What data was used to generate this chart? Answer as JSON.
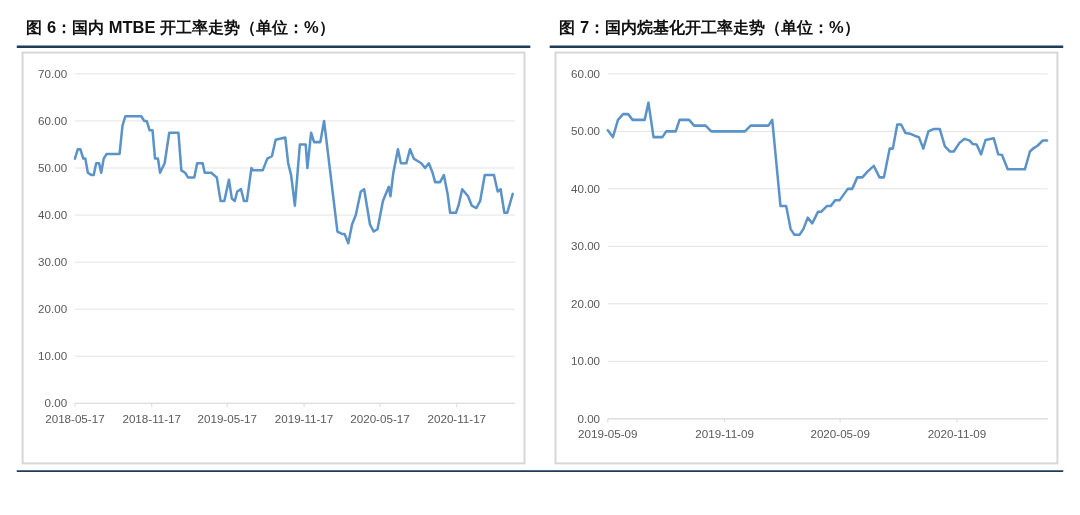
{
  "chart_data": [
    {
      "type": "line",
      "title": "图 6：国内 MTBE 开工率走势（单位：%）",
      "grid": "y",
      "marker": "none",
      "line_style": "solid",
      "xlim": [
        "2018-05-17",
        "2021-04-05"
      ],
      "xticks": [
        "2018-05-17",
        "2018-11-17",
        "2019-05-17",
        "2019-11-17",
        "2020-05-17",
        "2020-11-17"
      ],
      "ylim": [
        0,
        70
      ],
      "yticks": [
        {
          "value": 0,
          "label": "0.00"
        },
        {
          "value": 10,
          "label": "10.00"
        },
        {
          "value": 20,
          "label": "20.00"
        },
        {
          "value": 30,
          "label": "30.00"
        },
        {
          "value": 40,
          "label": "40.00"
        },
        {
          "value": 50,
          "label": "50.00"
        },
        {
          "value": 60,
          "label": "60.00"
        },
        {
          "value": 70,
          "label": "70.00"
        }
      ],
      "series": [
        {
          "color": "#5b93c9",
          "x": [
            "2018-05-17",
            "2018-05-24",
            "2018-05-30",
            "2018-06-06",
            "2018-06-11",
            "2018-06-17",
            "2018-06-26",
            "2018-07-01",
            "2018-07-07",
            "2018-07-14",
            "2018-07-19",
            "2018-07-25",
            "2018-08-01",
            "2018-08-08",
            "2018-09-01",
            "2018-09-08",
            "2018-09-15",
            "2018-10-23",
            "2018-10-30",
            "2018-11-05",
            "2018-11-12",
            "2018-11-19",
            "2018-11-25",
            "2018-12-02",
            "2018-12-07",
            "2018-12-18",
            "2018-12-29",
            "2019-01-20",
            "2019-01-27",
            "2019-02-05",
            "2019-02-12",
            "2019-02-27",
            "2019-03-06",
            "2019-03-19",
            "2019-03-24",
            "2019-04-09",
            "2019-04-15",
            "2019-04-22",
            "2019-05-01",
            "2019-05-10",
            "2019-05-21",
            "2019-05-28",
            "2019-06-04",
            "2019-06-10",
            "2019-06-19",
            "2019-06-26",
            "2019-07-03",
            "2019-07-14",
            "2019-07-18",
            "2019-08-10",
            "2019-08-21",
            "2019-09-01",
            "2019-09-10",
            "2019-10-03",
            "2019-10-10",
            "2019-10-17",
            "2019-10-26",
            "2019-11-07",
            "2019-11-21",
            "2019-11-25",
            "2019-12-04",
            "2019-12-11",
            "2019-12-26",
            "2020-01-04",
            "2020-02-05",
            "2020-02-16",
            "2020-02-22",
            "2020-03-02",
            "2020-03-11",
            "2020-03-20",
            "2020-04-01",
            "2020-04-09",
            "2020-04-23",
            "2020-05-02",
            "2020-05-11",
            "2020-05-24",
            "2020-06-07",
            "2020-06-11",
            "2020-06-18",
            "2020-06-29",
            "2020-07-06",
            "2020-07-19",
            "2020-07-28",
            "2020-08-06",
            "2020-08-15",
            "2020-08-24",
            "2020-09-02",
            "2020-09-11",
            "2020-09-20",
            "2020-09-26",
            "2020-10-08",
            "2020-10-17",
            "2020-10-26",
            "2020-11-01",
            "2020-11-15",
            "2020-11-21",
            "2020-11-30",
            "2020-12-14",
            "2020-12-23",
            "2021-01-03",
            "2021-01-12",
            "2021-01-23",
            "2021-02-01",
            "2021-02-14",
            "2021-02-23",
            "2021-03-02",
            "2021-03-11",
            "2021-03-18",
            "2021-03-31"
          ],
          "values": [
            52,
            54,
            54,
            52,
            52,
            49,
            48.5,
            48.5,
            51,
            51,
            49,
            52,
            53,
            53,
            53,
            59,
            61,
            61,
            60,
            60,
            58,
            58,
            52,
            52,
            49,
            51,
            57.5,
            57.5,
            49.5,
            49,
            48,
            48,
            51,
            51,
            49,
            49,
            48.5,
            48,
            43,
            43,
            47.5,
            43.5,
            43,
            45,
            45.5,
            43,
            43,
            50,
            49.5,
            49.5,
            52,
            52.5,
            56,
            56.5,
            51,
            48.5,
            42,
            55,
            55,
            50,
            57.5,
            55.5,
            55.5,
            60,
            36.5,
            36,
            36,
            34,
            38,
            40,
            45,
            45.5,
            38,
            36.5,
            37,
            43,
            46,
            44,
            49,
            54,
            51,
            51,
            54,
            52,
            51.5,
            51,
            50,
            51,
            49,
            47,
            47,
            48.5,
            44.5,
            40.5,
            40.5,
            42,
            45.5,
            44,
            42,
            41.5,
            43,
            48.5,
            48.5,
            48.5,
            45,
            45.5,
            40.5,
            40.5,
            44.5
          ]
        }
      ]
    },
    {
      "type": "line",
      "title": "图 7：国内烷基化开工率走势（单位：%）",
      "grid": "y",
      "marker": "none",
      "line_style": "solid",
      "xlim": [
        "2019-05-09",
        "2021-04-01"
      ],
      "xticks": [
        "2019-05-09",
        "2019-11-09",
        "2020-05-09",
        "2020-11-09"
      ],
      "ylim": [
        0,
        60
      ],
      "yticks": [
        {
          "value": 0,
          "label": "0.00"
        },
        {
          "value": 10,
          "label": "10.00"
        },
        {
          "value": 20,
          "label": "20.00"
        },
        {
          "value": 30,
          "label": "30.00"
        },
        {
          "value": 40,
          "label": "40.00"
        },
        {
          "value": 50,
          "label": "50.00"
        },
        {
          "value": 60,
          "label": "60.00"
        }
      ],
      "series": [
        {
          "color": "#5b93c9",
          "x": [
            "2019-05-09",
            "2019-05-17",
            "2019-05-25",
            "2019-06-02",
            "2019-06-10",
            "2019-06-17",
            "2019-07-06",
            "2019-07-12",
            "2019-07-20",
            "2019-08-03",
            "2019-08-09",
            "2019-08-24",
            "2019-08-30",
            "2019-09-14",
            "2019-09-22",
            "2019-10-10",
            "2019-10-19",
            "2019-12-11",
            "2019-12-20",
            "2020-01-17",
            "2020-01-23",
            "2020-02-05",
            "2020-02-14",
            "2020-02-21",
            "2020-02-27",
            "2020-03-06",
            "2020-03-12",
            "2020-03-19",
            "2020-03-26",
            "2020-04-04",
            "2020-04-09",
            "2020-04-18",
            "2020-04-24",
            "2020-05-01",
            "2020-05-08",
            "2020-05-21",
            "2020-05-28",
            "2020-06-05",
            "2020-06-13",
            "2020-06-21",
            "2020-07-01",
            "2020-07-10",
            "2020-07-17",
            "2020-07-26",
            "2020-07-31",
            "2020-08-07",
            "2020-08-13",
            "2020-08-20",
            "2020-08-27",
            "2020-09-04",
            "2020-09-10",
            "2020-09-17",
            "2020-09-25",
            "2020-10-03",
            "2020-10-13",
            "2020-10-21",
            "2020-10-29",
            "2020-11-04",
            "2020-11-13",
            "2020-11-21",
            "2020-11-29",
            "2020-12-04",
            "2020-12-10",
            "2020-12-17",
            "2020-12-24",
            "2021-01-06",
            "2021-01-13",
            "2021-01-19",
            "2021-01-28",
            "2021-02-24",
            "2021-03-04",
            "2021-03-10",
            "2021-03-16",
            "2021-03-24",
            "2021-03-31"
          ],
          "values": [
            50.2,
            49,
            52,
            53,
            53,
            52,
            52,
            55,
            49,
            49,
            50,
            50,
            52,
            52,
            51,
            51,
            50,
            50,
            51,
            51,
            52,
            37,
            37,
            33,
            32,
            32,
            33,
            35,
            34,
            36,
            36,
            37,
            37,
            38,
            38,
            40,
            40,
            42,
            42,
            43,
            44,
            42,
            42,
            47,
            47,
            51.2,
            51.2,
            49.7,
            49.6,
            49.2,
            49,
            47,
            50,
            50.4,
            50.4,
            47.4,
            46.5,
            46.5,
            48,
            48.7,
            48.4,
            47.8,
            47.7,
            46,
            48.5,
            48.8,
            46,
            45.9,
            43.4,
            43.4,
            46.5,
            47.1,
            47.5,
            48.4,
            48.4
          ]
        }
      ]
    }
  ]
}
